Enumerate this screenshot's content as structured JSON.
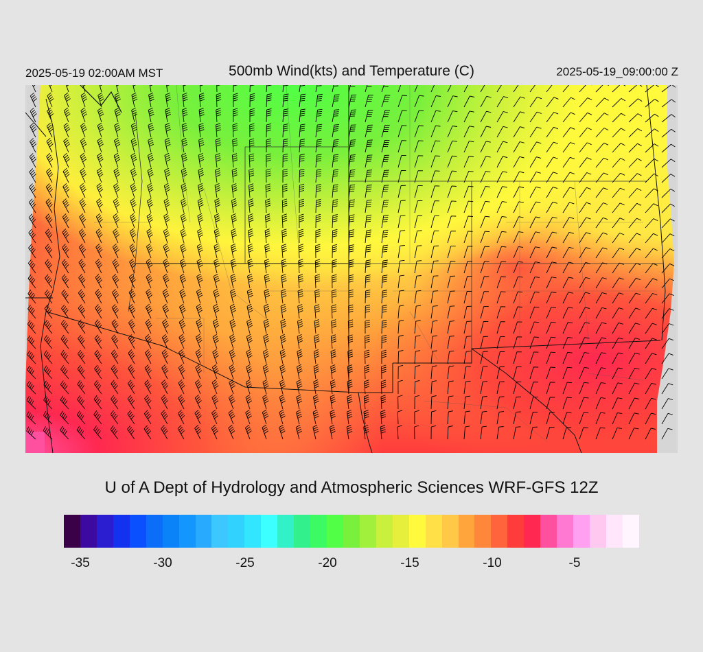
{
  "header": {
    "local_time": "2025-05-19 02:00AM MST",
    "title": "500mb Wind(kts) and Temperature (C)",
    "valid_time": "2025-05-19_09:00:00 Z"
  },
  "footer": {
    "credit": "U of A Dept of Hydrology and Atmospheric Sciences WRF-GFS 12Z"
  },
  "colorbar": {
    "colors": [
      "#3a0048",
      "#3c0aa0",
      "#2b1ed0",
      "#1232f0",
      "#0a50ff",
      "#0a6ef8",
      "#0a82f8",
      "#1496ff",
      "#28aaff",
      "#3cc8ff",
      "#32d2ff",
      "#32e6ff",
      "#3cffff",
      "#32f0c8",
      "#32f08c",
      "#3cfa64",
      "#50ff46",
      "#78f03c",
      "#a0f03c",
      "#c8f03c",
      "#e6f03c",
      "#fffa3c",
      "#ffe046",
      "#ffc846",
      "#ffa53c",
      "#ff873c",
      "#ff643c",
      "#ff3c3c",
      "#ff2850",
      "#ff50a0",
      "#ff78d2",
      "#ffa0f0",
      "#ffc8f0",
      "#ffe6fa",
      "#fff5ff"
    ],
    "labels": [
      "-35",
      "-30",
      "-25",
      "-20",
      "-15",
      "-10",
      "-5"
    ]
  },
  "map": {
    "field": "500mb temperature (C) with wind barbs (kts)",
    "wind_direction_dominant": "northwest-to-west flow",
    "temperature_range": [
      -21,
      -7
    ]
  }
}
